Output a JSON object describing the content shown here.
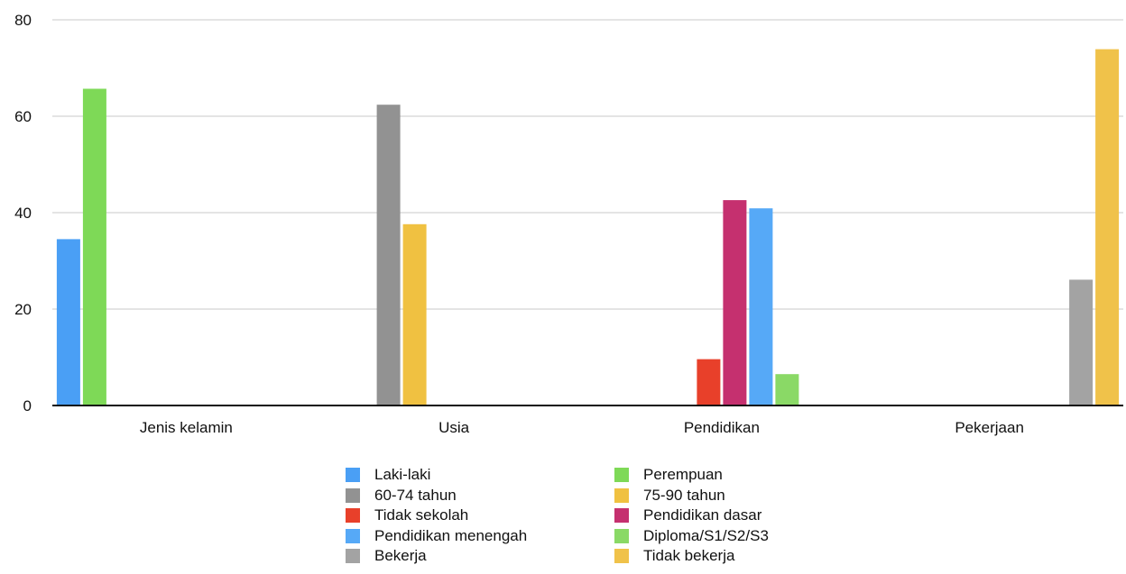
{
  "chart_data": {
    "type": "bar",
    "title": "",
    "xlabel": "",
    "ylabel": "",
    "ylim": [
      0,
      80
    ],
    "yticks": [
      0,
      20,
      40,
      60,
      80
    ],
    "grid": true,
    "legend_position": "bottom",
    "categories": [
      "Jenis kelamin",
      "Usia",
      "Pendidikan",
      "Pekerjaan"
    ],
    "series": [
      {
        "name": "Laki-laki",
        "color": "#4a9ff5",
        "values": [
          34.5,
          null,
          null,
          null
        ]
      },
      {
        "name": "Perempuan",
        "color": "#7ed957",
        "values": [
          65.7,
          null,
          null,
          null
        ]
      },
      {
        "name": "60-74 tahun",
        "color": "#929292",
        "values": [
          null,
          62.4,
          null,
          null
        ]
      },
      {
        "name": "75-90 tahun",
        "color": "#f0c141",
        "values": [
          null,
          37.6,
          null,
          null
        ]
      },
      {
        "name": "Tidak sekolah",
        "color": "#e8402a",
        "values": [
          null,
          null,
          9.6,
          null
        ]
      },
      {
        "name": "Pendidikan dasar",
        "color": "#c5306f",
        "values": [
          null,
          null,
          42.6,
          null
        ]
      },
      {
        "name": "Pendidikan menengah",
        "color": "#56a9f7",
        "values": [
          null,
          null,
          40.9,
          null
        ]
      },
      {
        "name": "Diploma/S1/S2/S3",
        "color": "#8ad966",
        "values": [
          null,
          null,
          6.5,
          null
        ]
      },
      {
        "name": "Bekerja",
        "color": "#a3a3a3",
        "values": [
          null,
          null,
          null,
          26.1
        ]
      },
      {
        "name": "Tidak bekerja",
        "color": "#f0c24a",
        "values": [
          null,
          null,
          null,
          73.9
        ]
      }
    ]
  }
}
